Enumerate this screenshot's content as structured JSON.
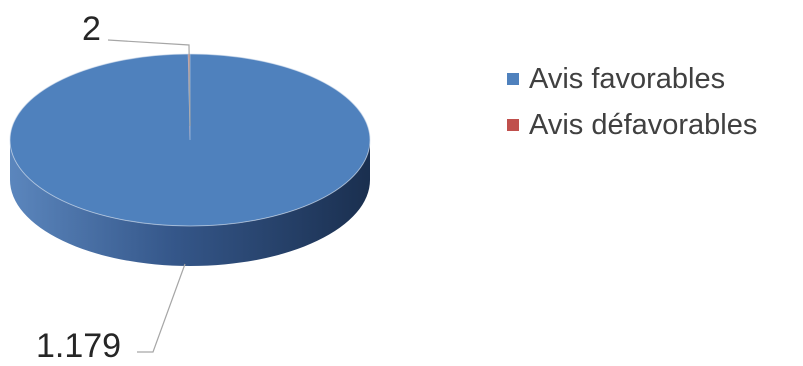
{
  "chart_data": {
    "type": "pie",
    "style": "3d",
    "categories": [
      "Avis favorables",
      "Avis défavorables"
    ],
    "values": [
      1179,
      2
    ],
    "data_labels": [
      "1.179",
      "2"
    ],
    "colors": [
      "#4f81bd",
      "#c0504d"
    ],
    "legend_position": "right",
    "title": ""
  },
  "legend": {
    "items": [
      {
        "label": "Avis favorables",
        "color": "#4f81bd"
      },
      {
        "label": "Avis défavorables",
        "color": "#c0504d"
      }
    ]
  }
}
